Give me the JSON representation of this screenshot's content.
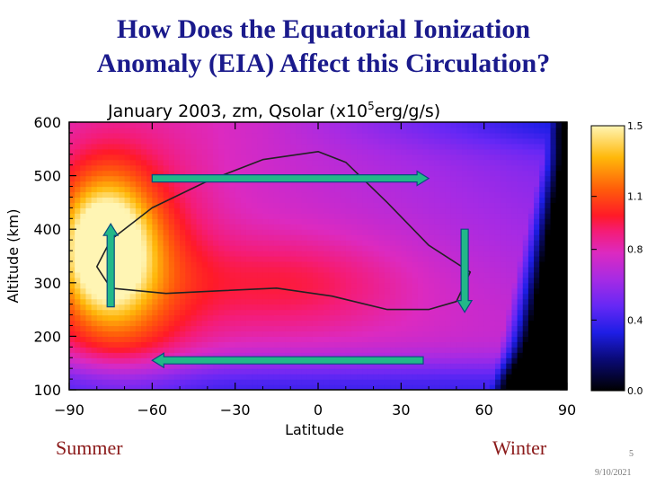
{
  "slide": {
    "title_line1": "How Does the Equatorial Ionization",
    "title_line2": "Anomaly (EIA) Affect this Circulation?",
    "left_label": "Summer",
    "right_label": "Winter",
    "slide_number": "5",
    "date": "9/10/2021"
  },
  "colors": {
    "title": "#1a1a8c",
    "arrow_fill": "#22b888",
    "arrow_edge": "#0a4a80",
    "corner_labels": "#8b1a1a"
  },
  "chart_data": {
    "type": "heatmap",
    "title": "January 2003, zm, Qsolar (x10^5erg/g/s)",
    "title_main": "January 2003, zm, Qsolar (x10",
    "title_exp": "5",
    "title_tail": "erg/g/s)",
    "xlabel": "Latitude",
    "ylabel": "Altitude (km)",
    "xlim": [
      -90,
      90
    ],
    "ylim": [
      100,
      600
    ],
    "xticks": [
      -90,
      -60,
      -30,
      0,
      30,
      60,
      90
    ],
    "xtick_labels": [
      "−90",
      "−60",
      "−30",
      "0",
      "30",
      "60",
      "90"
    ],
    "yticks": [
      100,
      200,
      300,
      400,
      500,
      600
    ],
    "ytick_labels": [
      "100",
      "200",
      "300",
      "400",
      "500",
      "600"
    ],
    "colorbar": {
      "range": [
        0.0,
        1.5
      ],
      "ticks": [
        0.0,
        0.4,
        0.8,
        1.1,
        1.5
      ],
      "tick_labels": [
        "0.0",
        "0.4",
        "0.8",
        "1.1",
        "1.5"
      ],
      "stops": [
        [
          0.0,
          "#000000"
        ],
        [
          0.12,
          "#0a0a78"
        ],
        [
          0.22,
          "#1e1ee6"
        ],
        [
          0.32,
          "#6628f5"
        ],
        [
          0.42,
          "#a62be4"
        ],
        [
          0.52,
          "#dc2ac0"
        ],
        [
          0.6,
          "#f41c78"
        ],
        [
          0.66,
          "#ff1a28"
        ],
        [
          0.76,
          "#ff5c0a"
        ],
        [
          0.88,
          "#ffb80a"
        ],
        [
          1.0,
          "#fff5b4"
        ]
      ]
    },
    "contour_line": [
      [
        -75,
        290
      ],
      [
        -80,
        330
      ],
      [
        -75,
        380
      ],
      [
        -60,
        440
      ],
      [
        -40,
        490
      ],
      [
        -20,
        530
      ],
      [
        0,
        545
      ],
      [
        10,
        525
      ],
      [
        25,
        450
      ],
      [
        40,
        370
      ],
      [
        55,
        320
      ],
      [
        50,
        265
      ],
      [
        40,
        250
      ],
      [
        25,
        250
      ],
      [
        5,
        275
      ],
      [
        -15,
        290
      ],
      [
        -35,
        285
      ],
      [
        -55,
        280
      ],
      [
        -75,
        290
      ]
    ],
    "circulation_arrows": [
      {
        "label": "upward",
        "from": [
          -75,
          255
        ],
        "to": [
          -75,
          410
        ]
      },
      {
        "label": "eastward",
        "from": [
          -60,
          495
        ],
        "to": [
          40,
          495
        ]
      },
      {
        "label": "downward",
        "from": [
          53,
          400
        ],
        "to": [
          53,
          245
        ]
      },
      {
        "label": "westward",
        "from": [
          38,
          155
        ],
        "to": [
          -60,
          155
        ]
      }
    ]
  }
}
